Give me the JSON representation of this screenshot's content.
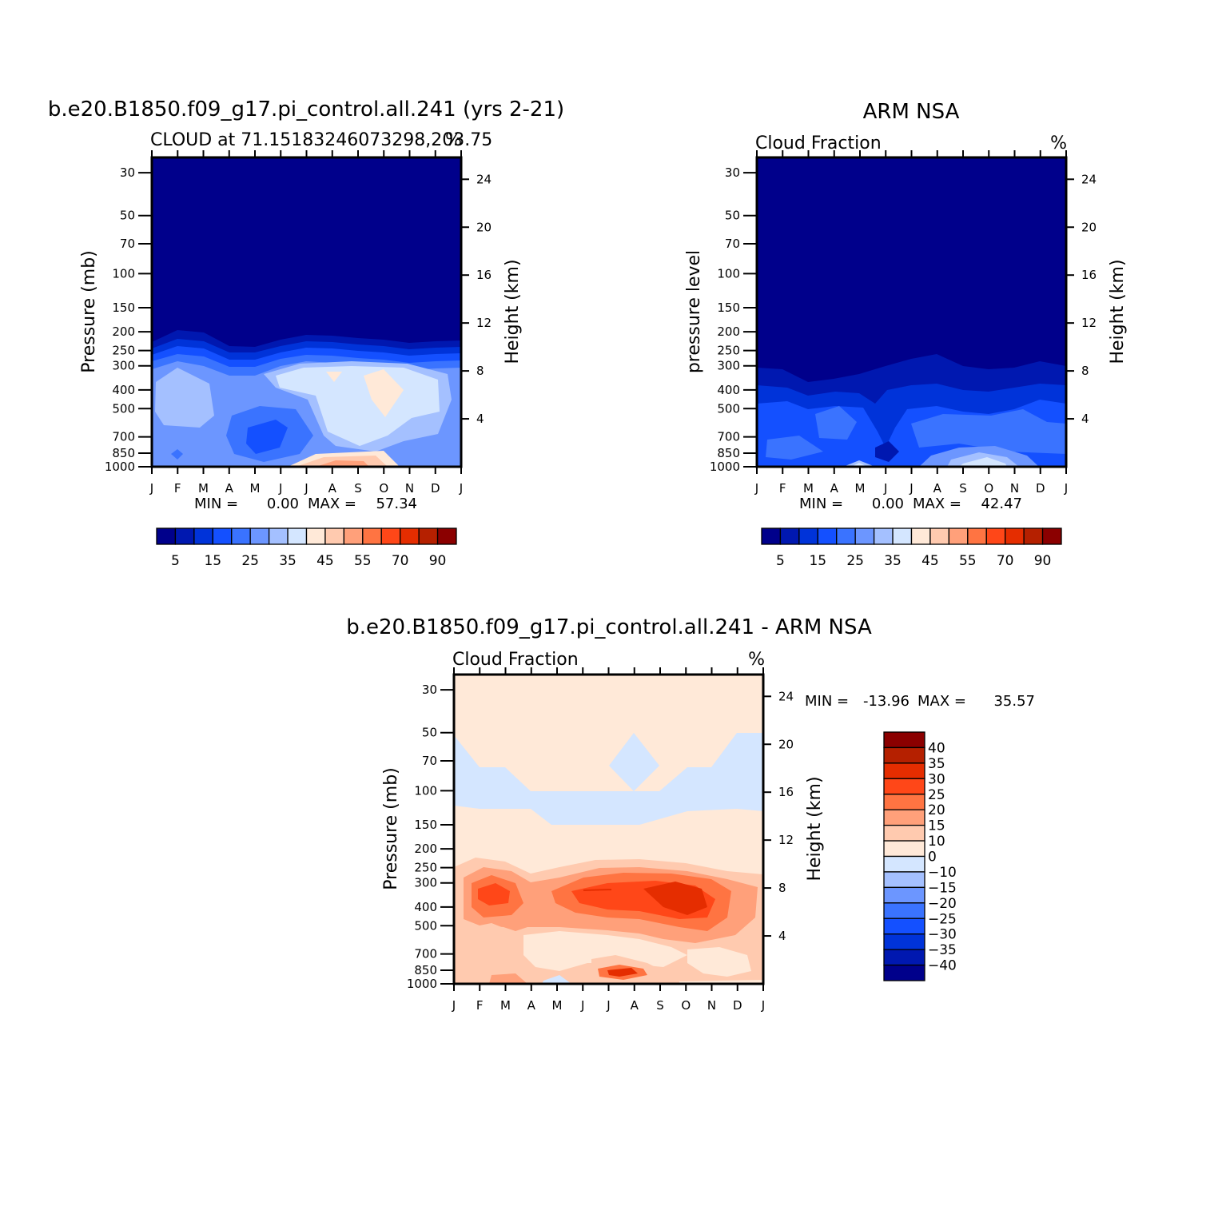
{
  "panels": [
    {
      "id": "model",
      "title": "b.e20.B1850.f09_g17.pi_control.all.241  (yrs 2-21)",
      "subtitle_left": "CLOUD at 71.15183246073298,203.75",
      "subtitle_right": "%",
      "y_left_label": "Pressure (mb)",
      "y_right_label": "Height (km)",
      "stats": {
        "min_label": "MIN =",
        "min": "0.00",
        "max_label": "MAX =",
        "max": "57.34"
      }
    },
    {
      "id": "obs",
      "title": "ARM NSA",
      "subtitle_left": "Cloud Fraction",
      "subtitle_right": "%",
      "y_left_label": "pressure level",
      "y_right_label": "Height (km)",
      "stats": {
        "min_label": "MIN =",
        "min": "0.00",
        "max_label": "MAX =",
        "max": "42.47"
      }
    },
    {
      "id": "diff",
      "title": "b.e20.B1850.f09_g17.pi_control.all.241 - ARM NSA",
      "subtitle_left": "Cloud Fraction",
      "subtitle_right": "%",
      "y_left_label": "Pressure (mb)",
      "y_right_label": "Height (km)",
      "stats": {
        "min_label": "MIN =",
        "min": "-13.96",
        "max_label": "MAX =",
        "max": "35.57"
      }
    }
  ],
  "chart_data": [
    {
      "type": "heatmap",
      "panel": "model",
      "x": [
        "J",
        "F",
        "M",
        "A",
        "M",
        "J",
        "J",
        "A",
        "S",
        "O",
        "N",
        "D",
        "J"
      ],
      "y_pressure_ticks": [
        30,
        50,
        70,
        100,
        150,
        200,
        250,
        300,
        400,
        500,
        700,
        850,
        1000
      ],
      "y_height_ticks": [
        4,
        8,
        12,
        16,
        20,
        24
      ],
      "ylim_pressure": [
        1000,
        25
      ],
      "value_range": [
        0.0,
        57.34
      ],
      "colorbar_ticks": [
        5,
        15,
        25,
        35,
        45,
        55,
        70,
        90
      ],
      "colorbar_colors": [
        "#00008b",
        "#0018b0",
        "#0033d9",
        "#1450ff",
        "#3a73ff",
        "#6c96ff",
        "#a4c0ff",
        "#d4e6ff",
        "#ffe9d8",
        "#ffcaaf",
        "#ffa07a",
        "#ff7442",
        "#ff4718",
        "#e52d00",
        "#b52000",
        "#8b0000"
      ]
    },
    {
      "type": "heatmap",
      "panel": "obs",
      "x": [
        "J",
        "F",
        "M",
        "A",
        "M",
        "J",
        "J",
        "A",
        "S",
        "O",
        "N",
        "D",
        "J"
      ],
      "y_pressure_ticks": [
        30,
        50,
        70,
        100,
        150,
        200,
        250,
        300,
        400,
        500,
        700,
        850,
        1000
      ],
      "y_height_ticks": [
        4,
        8,
        12,
        16,
        20,
        24
      ],
      "ylim_pressure": [
        1000,
        25
      ],
      "value_range": [
        0.0,
        42.47
      ],
      "colorbar_ticks": [
        5,
        15,
        25,
        35,
        45,
        55,
        70,
        90
      ],
      "colorbar_colors": [
        "#00008b",
        "#0018b0",
        "#0033d9",
        "#1450ff",
        "#3a73ff",
        "#6c96ff",
        "#a4c0ff",
        "#d4e6ff",
        "#ffe9d8",
        "#ffcaaf",
        "#ffa07a",
        "#ff7442",
        "#ff4718",
        "#e52d00",
        "#b52000",
        "#8b0000"
      ]
    },
    {
      "type": "heatmap",
      "panel": "diff",
      "x": [
        "J",
        "F",
        "M",
        "A",
        "M",
        "J",
        "J",
        "A",
        "S",
        "O",
        "N",
        "D",
        "J"
      ],
      "y_pressure_ticks": [
        30,
        50,
        70,
        100,
        150,
        200,
        250,
        300,
        400,
        500,
        700,
        850,
        1000
      ],
      "y_height_ticks": [
        4,
        8,
        12,
        16,
        20,
        24
      ],
      "ylim_pressure": [
        1000,
        25
      ],
      "value_range": [
        -13.96,
        35.57
      ],
      "colorbar_ticks": [
        40,
        35,
        30,
        25,
        20,
        15,
        10,
        0,
        -10,
        -15,
        -20,
        -25,
        -30,
        -35,
        -40
      ],
      "colorbar_colors": [
        "#8b0000",
        "#b52000",
        "#e52d00",
        "#ff4718",
        "#ff7442",
        "#ffa07a",
        "#ffcaaf",
        "#ffe9d8",
        "#d4e6ff",
        "#a4c0ff",
        "#6c96ff",
        "#3a73ff",
        "#1450ff",
        "#0033d9",
        "#0018b0",
        "#00008b"
      ]
    }
  ]
}
